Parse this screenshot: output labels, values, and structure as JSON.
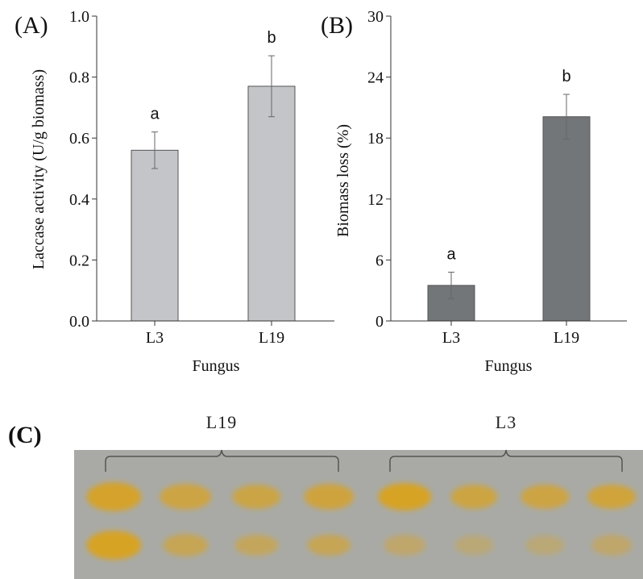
{
  "panel_a": {
    "letter": "(A)",
    "ylabel": "Laccase activity (U/g biomass)",
    "xlabel": "Fungus",
    "yticks": [
      "0.0",
      "0.2",
      "0.4",
      "0.6",
      "0.8",
      "1.0"
    ],
    "bar_color": "#c3c5c9"
  },
  "panel_b": {
    "letter": "(B)",
    "ylabel": "Biomass loss (%)",
    "xlabel": "Fungus",
    "yticks": [
      "0",
      "6",
      "12",
      "18",
      "24",
      "30"
    ],
    "bar_color": "#727678"
  },
  "panel_c": {
    "letter": "(C)",
    "group_left": "L19",
    "group_right": "L3",
    "background_color": "#a9aaa6",
    "spot_color": "#d9a21f"
  },
  "chart_data": [
    {
      "type": "bar",
      "categories": [
        "L3",
        "L19"
      ],
      "values": [
        0.56,
        0.77
      ],
      "errors": [
        0.06,
        0.1
      ],
      "significance": [
        "a",
        "b"
      ],
      "ylim": [
        0,
        1.0
      ],
      "xlabel": "Fungus",
      "ylabel": "Laccase activity (U/g biomass)",
      "grid": false
    },
    {
      "type": "bar",
      "categories": [
        "L3",
        "L19"
      ],
      "values": [
        3.5,
        20.1
      ],
      "errors": [
        1.3,
        2.2
      ],
      "significance": [
        "a",
        "b"
      ],
      "ylim": [
        0,
        30
      ],
      "xlabel": "Fungus",
      "ylabel": "Biomass loss (%)",
      "grid": false
    }
  ]
}
